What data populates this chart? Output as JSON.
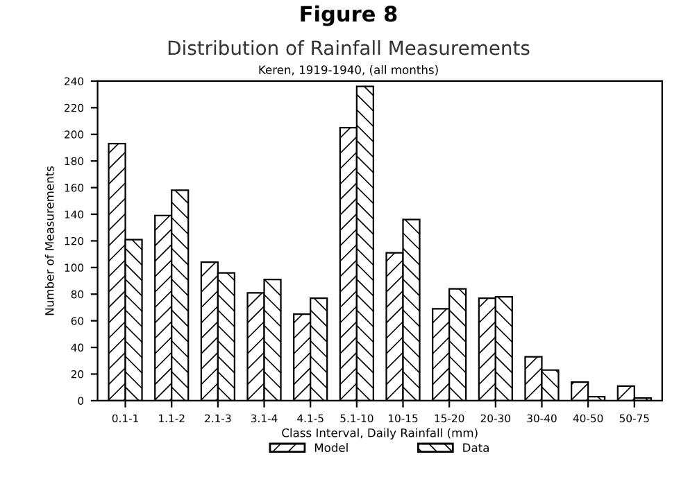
{
  "chart_data": {
    "type": "bar",
    "title": "Figure 8",
    "subtitle": "Distribution of Rainfall Measurements",
    "annotations": [
      "Keren, 1919-1940, (all months)"
    ],
    "xlabel": "Class Interval, Daily Rainfall (mm)",
    "ylabel": "Number of Measurements",
    "categories": [
      "0.1-1",
      "1.1-2",
      "2.1-3",
      "3.1-4",
      "4.1-5",
      "5.1-10",
      "10-15",
      "15-20",
      "20-30",
      "30-40",
      "40-50",
      "50-75"
    ],
    "series": [
      {
        "name": "Model",
        "color": "#000000",
        "values": [
          193,
          139,
          104,
          81,
          65,
          205,
          111,
          69,
          77,
          33,
          14,
          11
        ]
      },
      {
        "name": "Data",
        "color": "#000000",
        "values": [
          121,
          158,
          96,
          91,
          77,
          236,
          136,
          84,
          78,
          23,
          3,
          2
        ]
      }
    ],
    "ylim": [
      0,
      240
    ],
    "yticks": [
      0,
      20,
      40,
      60,
      80,
      100,
      120,
      140,
      160,
      180,
      200,
      220,
      240
    ],
    "grid": false,
    "legend": "bottom"
  }
}
